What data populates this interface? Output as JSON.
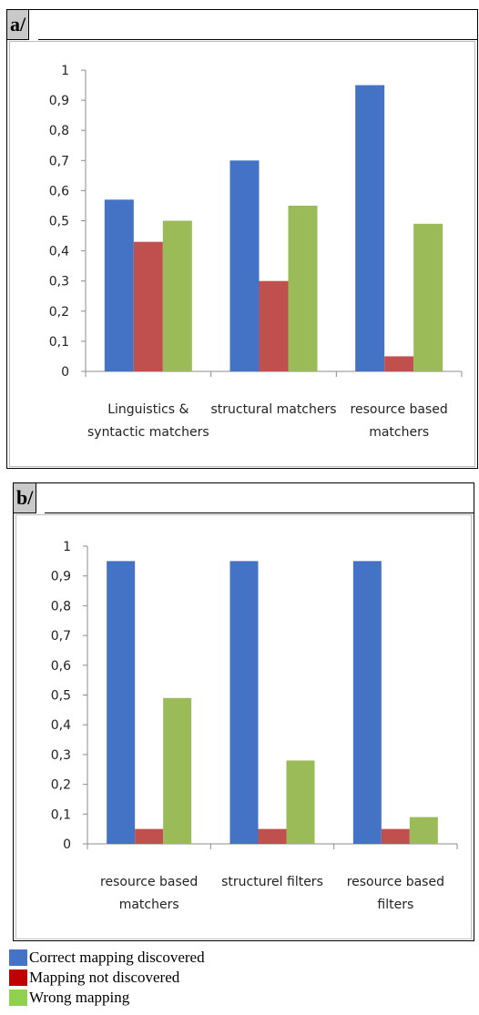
{
  "colors": {
    "correct": "#4472c4",
    "not_discovered": "#c0504d",
    "wrong": "#9bbb59"
  },
  "legend": [
    {
      "label": "Correct mapping discovered",
      "color": "#4472c4"
    },
    {
      "label": "Mapping not discovered",
      "color": "#c00000"
    },
    {
      "label": "Wrong mapping",
      "color": "#92d050"
    }
  ],
  "chart_data": [
    {
      "type": "bar",
      "panel_label": "a/",
      "categories": [
        [
          "Linguistics &",
          "syntactic matchers"
        ],
        [
          "structural matchers"
        ],
        [
          "resource based",
          "matchers"
        ]
      ],
      "series": [
        {
          "values": [
            0.57,
            0.7,
            0.95
          ]
        },
        {
          "values": [
            0.43,
            0.3,
            0.05
          ]
        },
        {
          "values": [
            0.5,
            0.55,
            0.49
          ]
        }
      ],
      "yticks": [
        "0",
        "0,1",
        "0,2",
        "0,3",
        "0,4",
        "0,5",
        "0,6",
        "0,7",
        "0,8",
        "0,9",
        "1"
      ],
      "ylim": [
        0,
        1
      ],
      "grid": false
    },
    {
      "type": "bar",
      "panel_label": "b/",
      "categories": [
        [
          "resource based",
          "matchers"
        ],
        [
          "structurel filters"
        ],
        [
          "resource based",
          "filters"
        ]
      ],
      "series": [
        {
          "values": [
            0.95,
            0.95,
            0.95
          ]
        },
        {
          "values": [
            0.05,
            0.05,
            0.05
          ]
        },
        {
          "values": [
            0.49,
            0.28,
            0.09
          ]
        }
      ],
      "yticks": [
        "0",
        "0,1",
        "0,2",
        "0,3",
        "0,4",
        "0,5",
        "0,6",
        "0,7",
        "0,8",
        "0,9",
        "1"
      ],
      "ylim": [
        0,
        1
      ],
      "grid": false
    }
  ]
}
